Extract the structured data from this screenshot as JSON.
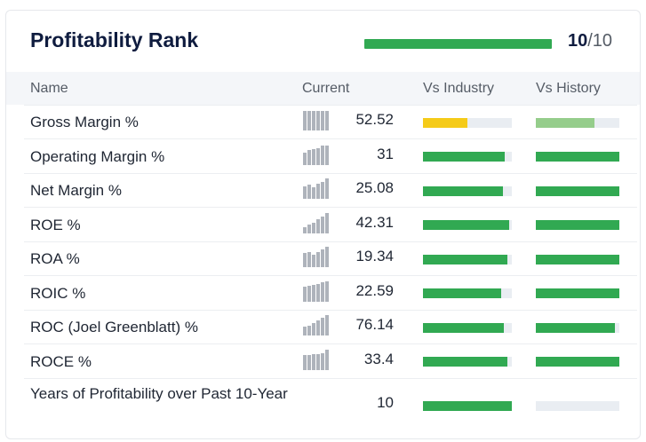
{
  "title": "Profitability Rank",
  "rank": {
    "value": "10",
    "max": "/10",
    "fraction": 1.0,
    "color": "#31a952"
  },
  "header": {
    "name": "Name",
    "current": "Current",
    "industry": "Vs Industry",
    "history": "Vs History"
  },
  "colors": {
    "green": "#31a952",
    "yellow": "#f5cb19",
    "light_green": "#95cd8b",
    "track": "#e9edf2"
  },
  "rows": [
    {
      "name": "Gross Margin %",
      "current": "52.52",
      "spark": [
        0.9,
        0.9,
        0.9,
        0.9,
        0.9,
        0.9
      ],
      "industry": 0.5,
      "industry_color": "#f5cb19",
      "history": 0.7,
      "history_color": "#95cd8b"
    },
    {
      "name": "Operating Margin %",
      "current": "31",
      "spark": [
        0.6,
        0.7,
        0.75,
        0.8,
        0.9,
        0.9
      ],
      "industry": 0.92,
      "industry_color": "#31a952",
      "history": 1.0,
      "history_color": "#31a952"
    },
    {
      "name": "Net Margin %",
      "current": "25.08",
      "spark": [
        0.6,
        0.65,
        0.55,
        0.7,
        0.8,
        0.95
      ],
      "industry": 0.9,
      "industry_color": "#31a952",
      "history": 1.0,
      "history_color": "#31a952"
    },
    {
      "name": "ROE %",
      "current": "42.31",
      "spark": [
        0.3,
        0.4,
        0.5,
        0.65,
        0.8,
        0.95
      ],
      "industry": 0.97,
      "industry_color": "#31a952",
      "history": 1.0,
      "history_color": "#31a952"
    },
    {
      "name": "ROA %",
      "current": "19.34",
      "spark": [
        0.65,
        0.7,
        0.6,
        0.7,
        0.85,
        0.95
      ],
      "industry": 0.95,
      "industry_color": "#31a952",
      "history": 1.0,
      "history_color": "#31a952"
    },
    {
      "name": "ROIC %",
      "current": "22.59",
      "spark": [
        0.7,
        0.75,
        0.8,
        0.85,
        0.9,
        0.95
      ],
      "industry": 0.88,
      "industry_color": "#31a952",
      "history": 1.0,
      "history_color": "#31a952"
    },
    {
      "name": "ROC (Joel Greenblatt) %",
      "current": "76.14",
      "spark": [
        0.4,
        0.45,
        0.6,
        0.7,
        0.85,
        0.95
      ],
      "industry": 0.91,
      "industry_color": "#31a952",
      "history": 0.95,
      "history_color": "#31a952"
    },
    {
      "name": "ROCE %",
      "current": "33.4",
      "spark": [
        0.7,
        0.7,
        0.75,
        0.75,
        0.8,
        0.95
      ],
      "industry": 0.95,
      "industry_color": "#31a952",
      "history": 1.0,
      "history_color": "#31a952"
    },
    {
      "name": "Years of Profitability over Past 10-Year",
      "current": "10",
      "spark": [],
      "industry": 1.0,
      "industry_color": "#31a952",
      "history": 0.0,
      "history_color": "#31a952"
    }
  ]
}
